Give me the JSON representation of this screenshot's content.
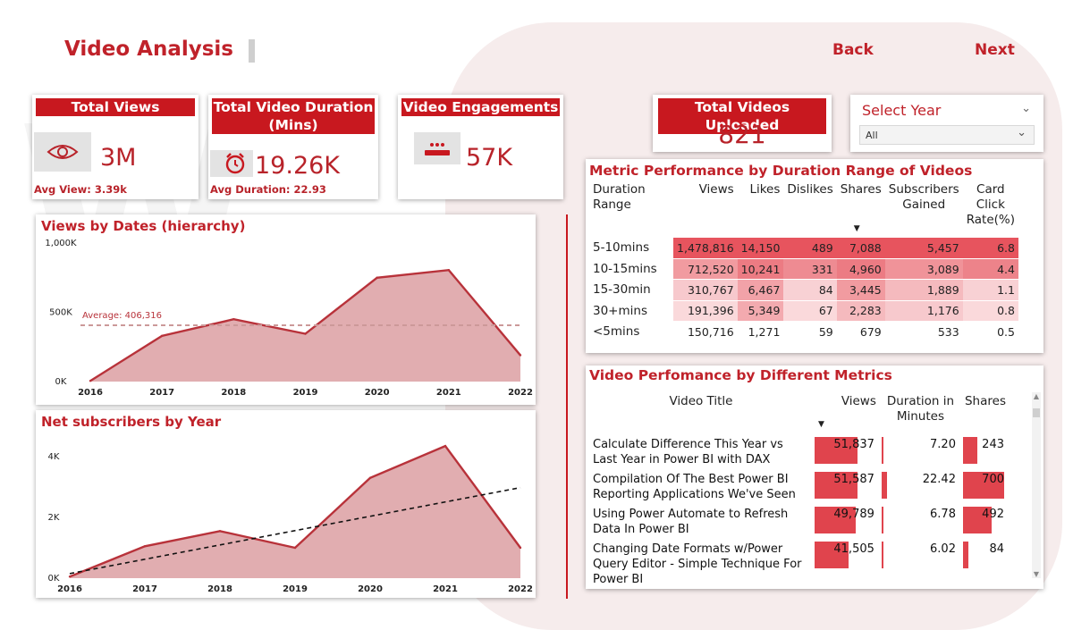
{
  "page": {
    "title": "Video Analysis",
    "back_label": "Back",
    "next_label": "Next"
  },
  "kpis": {
    "views": {
      "header": "Total Views",
      "value": "3M",
      "sub": "Avg View: 3.39k",
      "icon": "eye-icon"
    },
    "duration": {
      "header": "Total Video Duration (Mins)",
      "value": "19.26K",
      "sub": "Avg Duration: 22.93",
      "icon": "alarm-clock-icon"
    },
    "engagement": {
      "header": "Video Engagements",
      "value": "57K",
      "icon": "subscribe-icon"
    },
    "uploaded": {
      "header": "Total Videos Uploaded",
      "value": "821"
    }
  },
  "slicer": {
    "title": "Select Year",
    "value": "All"
  },
  "metric_table": {
    "title": "Metric Performance by Duration Range of Videos",
    "columns": [
      "Duration Range",
      "Views",
      "Likes",
      "Dislikes",
      "Shares",
      "Subscribers Gained",
      "Card Click Rate(%)"
    ],
    "rows": [
      [
        "5-10mins",
        "1,478,816",
        "14,150",
        "489",
        "7,088",
        "5,457",
        "6.8"
      ],
      [
        "10-15mins",
        "712,520",
        "10,241",
        "331",
        "4,960",
        "3,089",
        "4.4"
      ],
      [
        "15-30min",
        "310,767",
        "6,467",
        "84",
        "3,445",
        "1,889",
        "1.1"
      ],
      [
        "30+mins",
        "191,396",
        "5,349",
        "67",
        "2,283",
        "1,176",
        "0.8"
      ],
      [
        "<5mins",
        "150,716",
        "1,271",
        "59",
        "679",
        "533",
        "0.5"
      ]
    ],
    "shade": [
      [
        0,
        0.95,
        0.95,
        0.95,
        0.95,
        0.95,
        0.95
      ],
      [
        0,
        0.5,
        0.7,
        0.6,
        0.7,
        0.55,
        0.65
      ],
      [
        0,
        0.2,
        0.45,
        0.15,
        0.5,
        0.3,
        0.15
      ],
      [
        0,
        0.1,
        0.4,
        0.1,
        0.3,
        0.2,
        0.1
      ],
      [
        0,
        0.0,
        0.0,
        0.0,
        0.0,
        0.0,
        0.0
      ]
    ]
  },
  "video_table": {
    "title": "Video Perfomance by Different Metrics",
    "columns": [
      "Video Title",
      "Views",
      "Duration in Minutes",
      "Shares"
    ],
    "rows": [
      {
        "title": "Calculate Difference This Year vs Last Year in Power BI with DAX",
        "views": "51,837",
        "duration": "7.20",
        "shares": "243",
        "views_n": 51837,
        "dur_n": 7.2,
        "shares_n": 243
      },
      {
        "title": "Compilation Of The Best Power BI Reporting Applications We've Seen",
        "views": "51,587",
        "duration": "22.42",
        "shares": "700",
        "views_n": 51587,
        "dur_n": 22.42,
        "shares_n": 700
      },
      {
        "title": "Using Power Automate to Refresh Data In Power BI",
        "views": "49,789",
        "duration": "6.78",
        "shares": "492",
        "views_n": 49789,
        "dur_n": 6.78,
        "shares_n": 492
      },
      {
        "title": "Changing Date Formats w/Power Query Editor - Simple Technique For Power BI",
        "views": "41,505",
        "duration": "6.02",
        "shares": "84",
        "views_n": 41505,
        "dur_n": 6.02,
        "shares_n": 84
      }
    ]
  },
  "chart_data": [
    {
      "type": "area",
      "title": "Views by Dates (hierarchy)",
      "categories": [
        "2016",
        "2017",
        "2018",
        "2019",
        "2020",
        "2021",
        "2022"
      ],
      "values": [
        5000,
        330000,
        450000,
        345000,
        750000,
        805000,
        190000
      ],
      "ylim": [
        0,
        1000000
      ],
      "yticks": [
        "0K",
        "500K",
        "1,000K"
      ],
      "reference_line": {
        "label": "Average: 406,316",
        "value": 406316
      }
    },
    {
      "type": "area",
      "title": "Net subscribers by Year",
      "categories": [
        "2016",
        "2017",
        "2018",
        "2019",
        "2020",
        "2021",
        "2022"
      ],
      "values": [
        50,
        1050,
        1550,
        1000,
        3300,
        4350,
        1000
      ],
      "ylim": [
        0,
        5000
      ],
      "yticks": [
        "0K",
        "2K",
        "4K"
      ],
      "trend": [
        150,
        2980
      ]
    }
  ]
}
